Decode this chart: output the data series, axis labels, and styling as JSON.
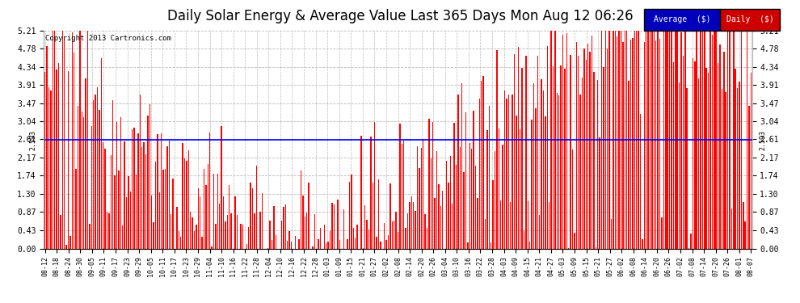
{
  "title": "Daily Solar Energy & Average Value Last 365 Days Mon Aug 12 06:26",
  "copyright": "Copyright 2013 Cartronics.com",
  "average_value": 2.593,
  "ylim": [
    0.0,
    5.21
  ],
  "yticks": [
    0.0,
    0.43,
    0.87,
    1.3,
    1.74,
    2.17,
    2.61,
    3.04,
    3.47,
    3.91,
    4.34,
    4.78,
    5.21
  ],
  "bar_color": "#ff0000",
  "avg_line_color": "#0000ff",
  "background_color": "#ffffff",
  "plot_bg_color": "#ffffff",
  "legend_avg_bg": "#0000bb",
  "legend_daily_bg": "#cc0000",
  "title_fontsize": 12,
  "n_days": 365,
  "x_label_dates": [
    "08-12",
    "08-18",
    "08-24",
    "08-30",
    "09-05",
    "09-11",
    "09-17",
    "09-23",
    "09-29",
    "10-05",
    "10-11",
    "10-17",
    "10-23",
    "10-29",
    "11-04",
    "11-10",
    "11-16",
    "11-22",
    "11-28",
    "12-04",
    "12-10",
    "12-16",
    "12-22",
    "12-28",
    "01-03",
    "01-09",
    "01-15",
    "01-21",
    "01-27",
    "02-02",
    "02-08",
    "02-14",
    "02-20",
    "02-26",
    "03-04",
    "03-10",
    "03-16",
    "03-22",
    "03-28",
    "04-03",
    "04-09",
    "04-15",
    "04-21",
    "04-27",
    "05-03",
    "05-09",
    "05-15",
    "05-21",
    "05-27",
    "06-02",
    "06-08",
    "06-14",
    "06-20",
    "06-26",
    "07-02",
    "07-08",
    "07-14",
    "07-20",
    "07-26",
    "08-01",
    "08-07"
  ],
  "seed": 12345
}
